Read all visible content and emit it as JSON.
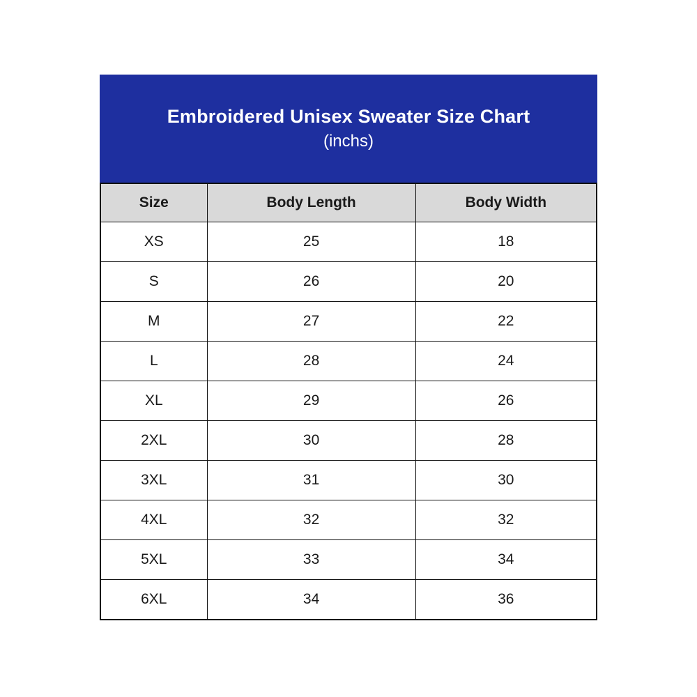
{
  "title": {
    "line1": "Embroidered Unisex Sweater Size Chart",
    "line2": "(inchs)"
  },
  "colors": {
    "title_band_bg": "#1e2f9f",
    "title_text": "#ffffff",
    "col_header_bg": "#d9d9d9",
    "border_color": "#111111"
  },
  "table": {
    "headers": [
      "Size",
      "Body Length",
      "Body Width"
    ],
    "rows": [
      {
        "size": "XS",
        "length": "25",
        "width": "18"
      },
      {
        "size": "S",
        "length": "26",
        "width": "20"
      },
      {
        "size": "M",
        "length": "27",
        "width": "22"
      },
      {
        "size": "L",
        "length": "28",
        "width": "24"
      },
      {
        "size": "XL",
        "length": "29",
        "width": "26"
      },
      {
        "size": "2XL",
        "length": "30",
        "width": "28"
      },
      {
        "size": "3XL",
        "length": "31",
        "width": "30"
      },
      {
        "size": "4XL",
        "length": "32",
        "width": "32"
      },
      {
        "size": "5XL",
        "length": "33",
        "width": "34"
      },
      {
        "size": "6XL",
        "length": "34",
        "width": "36"
      }
    ]
  },
  "chart_data": {
    "type": "table",
    "title": "Embroidered Unisex Sweater Size Chart",
    "subtitle": "(inchs)",
    "unit": "inches",
    "columns": [
      "Size",
      "Body Length",
      "Body Width"
    ],
    "rows": [
      [
        "XS",
        25,
        18
      ],
      [
        "S",
        26,
        20
      ],
      [
        "M",
        27,
        22
      ],
      [
        "L",
        28,
        24
      ],
      [
        "XL",
        29,
        26
      ],
      [
        "2XL",
        30,
        28
      ],
      [
        "3XL",
        31,
        30
      ],
      [
        "4XL",
        32,
        32
      ],
      [
        "5XL",
        33,
        34
      ],
      [
        "6XL",
        34,
        36
      ]
    ]
  }
}
